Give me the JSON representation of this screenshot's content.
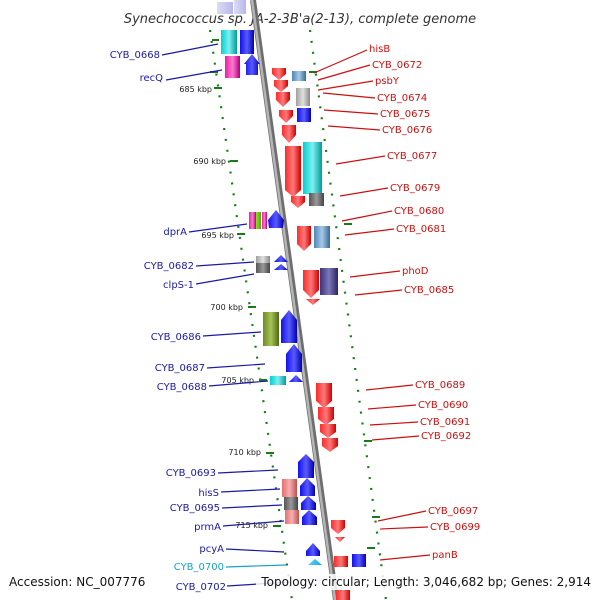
{
  "title": "Synechococcus sp. JA-2-3B'a(2-13), complete genome",
  "accession": "Accession: NC_007776",
  "topology": "Topology: circular; Length: 3,046,682 bp; Genes: 2,914",
  "scale_labels": [
    "685 kbp",
    "690 kbp",
    "695 kbp",
    "700 kbp",
    "705 kbp",
    "710 kbp",
    "715 kbp"
  ],
  "left_labels": [
    "CYB_0668",
    "recQ",
    "dprA",
    "CYB_0682",
    "clpS-1",
    "CYB_0686",
    "CYB_0687",
    "CYB_0688",
    "CYB_0693",
    "hisS",
    "CYB_0695",
    "prmA",
    "pcyA",
    "CYB_0700",
    "CYB_0702"
  ],
  "right_labels": [
    "hisB",
    "CYB_0672",
    "psbY",
    "CYB_0674",
    "CYB_0675",
    "CYB_0676",
    "CYB_0677",
    "CYB_0679",
    "CYB_0680",
    "CYB_0681",
    "phoD",
    "CYB_0685",
    "CYB_0689",
    "CYB_0690",
    "CYB_0691",
    "CYB_0692",
    "CYB_0697",
    "CYB_0699",
    "panB"
  ],
  "colors": {
    "label_blue": "#1a1aa6",
    "label_red": "#cc1010",
    "label_cyan": "#16a3c7",
    "backbone": "#8c8c8c",
    "tick_green": "#1a7a1a",
    "gene_red": "#ee0000",
    "gene_blue": "#0b0bdd",
    "gene_cyan": "#00c8c8",
    "gene_magenta": "#e0109a",
    "gene_olive": "#6f8e1e",
    "gene_gray": "#a8a8a8",
    "gene_darkgray": "#666666",
    "gene_navy": "#3a357d",
    "gene_salmon": "#e58080",
    "gene_lightblue": "#5a8fbf"
  }
}
